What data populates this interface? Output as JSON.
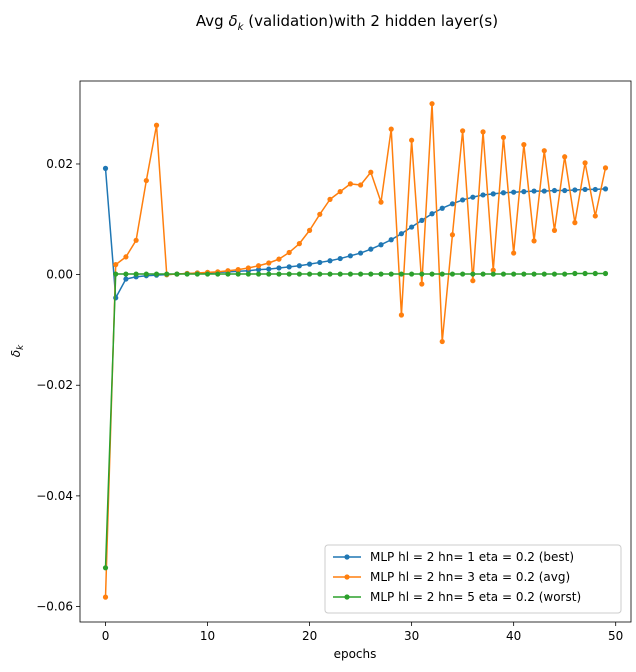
{
  "chart_data": {
    "type": "line",
    "title_parts": {
      "before": "Avg ",
      "symbol": "δ",
      "subscript": "k",
      "after": " (validation)with 2 hidden layer(s)"
    },
    "xlabel": "epochs",
    "ylabel": {
      "symbol": "δ",
      "subscript": "k"
    },
    "xlim": [
      -2.5,
      51.5
    ],
    "ylim": [
      -0.0628,
      0.035
    ],
    "xticks": [
      0,
      10,
      20,
      30,
      40,
      50
    ],
    "yticks": [
      -0.06,
      -0.04,
      -0.02,
      0.0,
      0.02
    ],
    "ytick_labels": [
      "−0.06",
      "−0.04",
      "−0.02",
      "0.00",
      "0.02"
    ],
    "grid": false,
    "legend_position": "lower-right",
    "series": [
      {
        "name": "MLP hl = 2 hn= 1 eta = 0.2 (best)",
        "color": "#1f77b4",
        "values": [
          0.0192,
          -0.0042,
          -0.0008,
          -0.0004,
          -0.0002,
          -0.0001,
          0.0,
          0.0001,
          0.0002,
          0.0003,
          0.0003,
          0.0004,
          0.0005,
          0.0006,
          0.0007,
          0.0009,
          0.001,
          0.0012,
          0.0014,
          0.0016,
          0.0019,
          0.0022,
          0.0025,
          0.0029,
          0.0034,
          0.0039,
          0.0046,
          0.0054,
          0.0063,
          0.0074,
          0.0086,
          0.0098,
          0.011,
          0.012,
          0.0128,
          0.0135,
          0.014,
          0.0144,
          0.0146,
          0.0148,
          0.0149,
          0.015,
          0.0151,
          0.0151,
          0.0152,
          0.0152,
          0.0153,
          0.0154,
          0.0154,
          0.0155
        ]
      },
      {
        "name": "MLP hl = 2 hn= 3 eta = 0.2 (avg)",
        "color": "#ff7f0e",
        "values": [
          -0.0583,
          0.0018,
          0.0032,
          0.0062,
          0.017,
          0.027,
          0.0,
          0.0001,
          0.0002,
          0.0003,
          0.0004,
          0.0005,
          0.0007,
          0.0009,
          0.0012,
          0.0016,
          0.0021,
          0.0028,
          0.004,
          0.0056,
          0.008,
          0.0109,
          0.0136,
          0.015,
          0.0164,
          0.0162,
          0.0185,
          0.0131,
          0.0263,
          -0.0073,
          0.0243,
          -0.0017,
          0.0309,
          -0.0121,
          0.0072,
          0.026,
          -0.0011,
          0.0258,
          0.0008,
          0.0248,
          0.0039,
          0.0235,
          0.0061,
          0.0224,
          0.008,
          0.0213,
          0.0094,
          0.0202,
          0.0106,
          0.0193
        ]
      },
      {
        "name": "MLP hl = 2 hn= 5 eta = 0.2 (worst)",
        "color": "#2ca02c",
        "values": [
          -0.053,
          0.0001,
          0.0001,
          0.0001,
          0.0001,
          0.0001,
          0.0001,
          0.0001,
          0.0001,
          0.0001,
          0.0001,
          0.0001,
          0.0001,
          0.0001,
          0.0001,
          0.0001,
          0.0001,
          0.0001,
          0.0001,
          0.0001,
          0.0001,
          0.0001,
          0.0001,
          0.0001,
          0.0001,
          0.0001,
          0.0001,
          0.0001,
          0.0001,
          0.0001,
          0.0001,
          0.0001,
          0.0001,
          0.0001,
          0.0001,
          0.0001,
          0.0001,
          0.0001,
          0.0001,
          0.0001,
          0.0001,
          0.0001,
          0.0001,
          0.0001,
          0.0001,
          0.0001,
          0.0002,
          0.0002,
          0.0002,
          0.0002
        ]
      }
    ]
  }
}
